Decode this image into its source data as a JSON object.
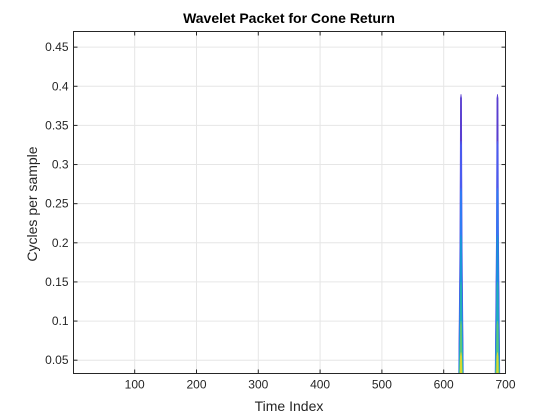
{
  "chart_data": {
    "type": "area",
    "title": "Wavelet Packet for Cone Return",
    "xlabel": "Time Index",
    "ylabel": "Cycles per sample",
    "xlim": [
      1,
      700
    ],
    "ylim": [
      0.033,
      0.47
    ],
    "x_ticks": [
      100,
      200,
      300,
      400,
      500,
      600,
      700
    ],
    "x_tick_labels": [
      "100",
      "200",
      "300",
      "400",
      "500",
      "600",
      "700"
    ],
    "y_ticks": [
      0.05,
      0.1,
      0.15,
      0.2,
      0.25,
      0.3,
      0.35,
      0.4,
      0.45
    ],
    "y_tick_labels": [
      "0.05",
      "0.1",
      "0.15",
      "0.2",
      "0.25",
      "0.3",
      "0.35",
      "0.4",
      "0.45"
    ],
    "grid": true,
    "legend": false,
    "colormap": "parula",
    "bursts": [
      {
        "center_x": 628,
        "half_width": 4,
        "peak_frequency": 0.39,
        "layers": [
          {
            "max_frequency": 0.39,
            "color": "#5a3fd0"
          },
          {
            "max_frequency": 0.33,
            "color": "#4a5cf0"
          },
          {
            "max_frequency": 0.27,
            "color": "#2f7cf4"
          },
          {
            "max_frequency": 0.21,
            "color": "#1898d8"
          },
          {
            "max_frequency": 0.15,
            "color": "#22b0b8"
          },
          {
            "max_frequency": 0.1,
            "color": "#5cc67a"
          },
          {
            "max_frequency": 0.06,
            "color": "#d8d830"
          }
        ]
      },
      {
        "center_x": 687,
        "half_width": 4,
        "peak_frequency": 0.39,
        "layers": [
          {
            "max_frequency": 0.39,
            "color": "#5a3fd0"
          },
          {
            "max_frequency": 0.33,
            "color": "#4a5cf0"
          },
          {
            "max_frequency": 0.27,
            "color": "#2f7cf4"
          },
          {
            "max_frequency": 0.21,
            "color": "#1898d8"
          },
          {
            "max_frequency": 0.15,
            "color": "#22b0b8"
          },
          {
            "max_frequency": 0.1,
            "color": "#5cc67a"
          },
          {
            "max_frequency": 0.06,
            "color": "#d8d830"
          }
        ]
      }
    ]
  }
}
